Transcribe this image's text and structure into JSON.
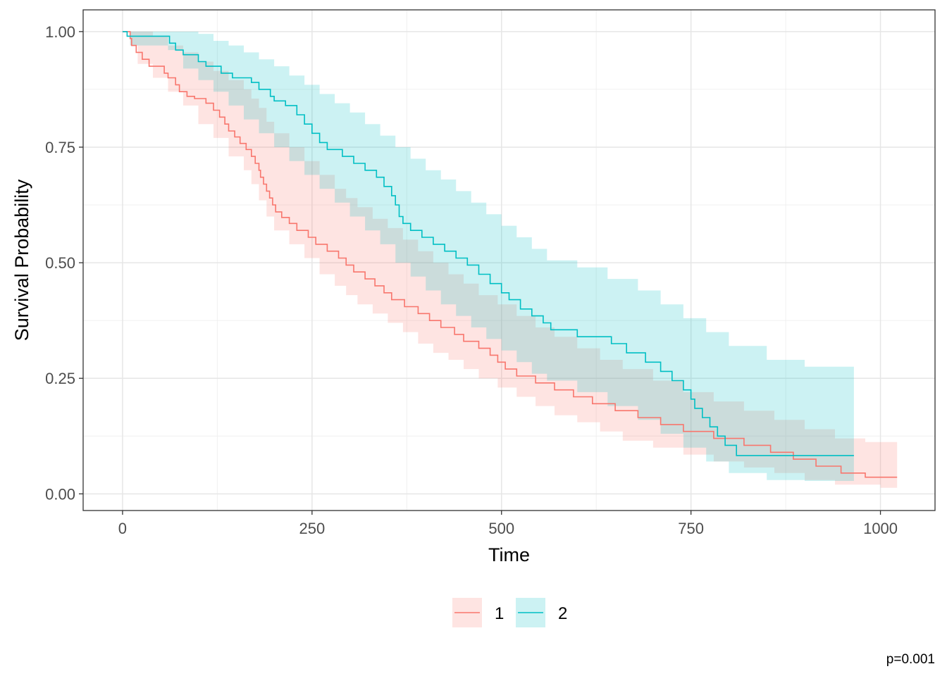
{
  "chart_data": {
    "type": "line",
    "title": "",
    "xlabel": "Time",
    "ylabel": "Survival Probability",
    "xlim": [
      -52,
      1072
    ],
    "ylim": [
      -0.036,
      1.047
    ],
    "x_ticks": [
      0,
      250,
      500,
      750,
      1000
    ],
    "x_tick_labels": [
      "0",
      "250",
      "500",
      "750",
      "1000"
    ],
    "y_ticks": [
      0,
      0.25,
      0.5,
      0.75,
      1
    ],
    "y_tick_labels": [
      "0.00",
      "0.25",
      "0.50",
      "0.75",
      "1.00"
    ],
    "grid": true,
    "legend_position": "bottom",
    "annotation": "p=0.001",
    "series": [
      {
        "name": "1",
        "color": "#F8766D",
        "fill": "#FFE0DF",
        "steps": [
          [
            0,
            1.0
          ],
          [
            5,
            1.0
          ],
          [
            10,
            0.985
          ],
          [
            12,
            0.97
          ],
          [
            18,
            0.955
          ],
          [
            26,
            0.94
          ],
          [
            35,
            0.925
          ],
          [
            55,
            0.91
          ],
          [
            60,
            0.9
          ],
          [
            70,
            0.885
          ],
          [
            75,
            0.87
          ],
          [
            85,
            0.86
          ],
          [
            95,
            0.855
          ],
          [
            110,
            0.845
          ],
          [
            120,
            0.83
          ],
          [
            128,
            0.815
          ],
          [
            135,
            0.8
          ],
          [
            140,
            0.785
          ],
          [
            148,
            0.772
          ],
          [
            155,
            0.758
          ],
          [
            163,
            0.745
          ],
          [
            170,
            0.73
          ],
          [
            175,
            0.715
          ],
          [
            180,
            0.7
          ],
          [
            182,
            0.685
          ],
          [
            186,
            0.67
          ],
          [
            190,
            0.655
          ],
          [
            194,
            0.64
          ],
          [
            198,
            0.625
          ],
          [
            202,
            0.61
          ],
          [
            210,
            0.598
          ],
          [
            220,
            0.585
          ],
          [
            230,
            0.57
          ],
          [
            245,
            0.555
          ],
          [
            255,
            0.54
          ],
          [
            270,
            0.525
          ],
          [
            285,
            0.51
          ],
          [
            295,
            0.495
          ],
          [
            305,
            0.48
          ],
          [
            320,
            0.465
          ],
          [
            333,
            0.45
          ],
          [
            345,
            0.435
          ],
          [
            355,
            0.42
          ],
          [
            372,
            0.405
          ],
          [
            390,
            0.39
          ],
          [
            405,
            0.375
          ],
          [
            420,
            0.36
          ],
          [
            438,
            0.345
          ],
          [
            450,
            0.33
          ],
          [
            470,
            0.315
          ],
          [
            485,
            0.3
          ],
          [
            495,
            0.285
          ],
          [
            505,
            0.27
          ],
          [
            520,
            0.255
          ],
          [
            545,
            0.24
          ],
          [
            570,
            0.225
          ],
          [
            595,
            0.21
          ],
          [
            620,
            0.195
          ],
          [
            650,
            0.18
          ],
          [
            680,
            0.165
          ],
          [
            710,
            0.15
          ],
          [
            740,
            0.135
          ],
          [
            780,
            0.12
          ],
          [
            820,
            0.105
          ],
          [
            855,
            0.09
          ],
          [
            885,
            0.075
          ],
          [
            915,
            0.06
          ],
          [
            948,
            0.045
          ],
          [
            980,
            0.036
          ],
          [
            1022,
            0.036
          ]
        ],
        "lower": [
          [
            0,
            1.0
          ],
          [
            10,
            0.97
          ],
          [
            20,
            0.93
          ],
          [
            40,
            0.9
          ],
          [
            60,
            0.87
          ],
          [
            80,
            0.84
          ],
          [
            100,
            0.8
          ],
          [
            120,
            0.77
          ],
          [
            140,
            0.73
          ],
          [
            160,
            0.7
          ],
          [
            170,
            0.67
          ],
          [
            180,
            0.635
          ],
          [
            190,
            0.6
          ],
          [
            200,
            0.57
          ],
          [
            220,
            0.54
          ],
          [
            240,
            0.51
          ],
          [
            260,
            0.475
          ],
          [
            280,
            0.45
          ],
          [
            295,
            0.43
          ],
          [
            310,
            0.41
          ],
          [
            330,
            0.39
          ],
          [
            350,
            0.37
          ],
          [
            370,
            0.35
          ],
          [
            390,
            0.325
          ],
          [
            410,
            0.305
          ],
          [
            430,
            0.29
          ],
          [
            450,
            0.27
          ],
          [
            470,
            0.25
          ],
          [
            495,
            0.23
          ],
          [
            520,
            0.21
          ],
          [
            545,
            0.19
          ],
          [
            570,
            0.17
          ],
          [
            600,
            0.155
          ],
          [
            630,
            0.135
          ],
          [
            660,
            0.115
          ],
          [
            700,
            0.1
          ],
          [
            740,
            0.085
          ],
          [
            780,
            0.07
          ],
          [
            820,
            0.057
          ],
          [
            860,
            0.045
          ],
          [
            900,
            0.03
          ],
          [
            940,
            0.02
          ],
          [
            1000,
            0.013
          ],
          [
            1022,
            0.013
          ]
        ],
        "upper": [
          [
            0,
            1.0
          ],
          [
            10,
            1.0
          ],
          [
            20,
            1.0
          ],
          [
            40,
            0.99
          ],
          [
            60,
            0.97
          ],
          [
            80,
            0.955
          ],
          [
            100,
            0.935
          ],
          [
            120,
            0.915
          ],
          [
            140,
            0.895
          ],
          [
            160,
            0.875
          ],
          [
            170,
            0.855
          ],
          [
            180,
            0.835
          ],
          [
            190,
            0.805
          ],
          [
            200,
            0.78
          ],
          [
            220,
            0.75
          ],
          [
            240,
            0.72
          ],
          [
            260,
            0.69
          ],
          [
            280,
            0.66
          ],
          [
            295,
            0.64
          ],
          [
            310,
            0.62
          ],
          [
            330,
            0.595
          ],
          [
            350,
            0.575
          ],
          [
            370,
            0.55
          ],
          [
            390,
            0.525
          ],
          [
            410,
            0.5
          ],
          [
            430,
            0.475
          ],
          [
            450,
            0.455
          ],
          [
            470,
            0.43
          ],
          [
            495,
            0.41
          ],
          [
            520,
            0.385
          ],
          [
            545,
            0.36
          ],
          [
            570,
            0.34
          ],
          [
            600,
            0.315
          ],
          [
            630,
            0.29
          ],
          [
            660,
            0.27
          ],
          [
            700,
            0.245
          ],
          [
            740,
            0.22
          ],
          [
            780,
            0.2
          ],
          [
            820,
            0.18
          ],
          [
            860,
            0.16
          ],
          [
            900,
            0.14
          ],
          [
            940,
            0.12
          ],
          [
            980,
            0.112
          ],
          [
            1022,
            0.112
          ]
        ]
      },
      {
        "name": "2",
        "color": "#00BFC4",
        "fill": "#CCF2F3",
        "steps": [
          [
            0,
            1.0
          ],
          [
            6,
            0.99
          ],
          [
            60,
            0.99
          ],
          [
            62,
            0.975
          ],
          [
            70,
            0.96
          ],
          [
            80,
            0.95
          ],
          [
            100,
            0.935
          ],
          [
            110,
            0.925
          ],
          [
            130,
            0.91
          ],
          [
            145,
            0.9
          ],
          [
            170,
            0.89
          ],
          [
            180,
            0.875
          ],
          [
            195,
            0.86
          ],
          [
            200,
            0.85
          ],
          [
            215,
            0.84
          ],
          [
            230,
            0.82
          ],
          [
            240,
            0.8
          ],
          [
            250,
            0.78
          ],
          [
            260,
            0.76
          ],
          [
            270,
            0.745
          ],
          [
            290,
            0.73
          ],
          [
            305,
            0.715
          ],
          [
            320,
            0.7
          ],
          [
            335,
            0.685
          ],
          [
            345,
            0.665
          ],
          [
            355,
            0.645
          ],
          [
            360,
            0.625
          ],
          [
            365,
            0.6
          ],
          [
            370,
            0.585
          ],
          [
            380,
            0.57
          ],
          [
            395,
            0.555
          ],
          [
            410,
            0.54
          ],
          [
            425,
            0.525
          ],
          [
            440,
            0.51
          ],
          [
            455,
            0.495
          ],
          [
            470,
            0.475
          ],
          [
            485,
            0.455
          ],
          [
            500,
            0.435
          ],
          [
            510,
            0.42
          ],
          [
            525,
            0.4
          ],
          [
            540,
            0.385
          ],
          [
            555,
            0.37
          ],
          [
            565,
            0.355
          ],
          [
            600,
            0.34
          ],
          [
            645,
            0.325
          ],
          [
            665,
            0.305
          ],
          [
            690,
            0.285
          ],
          [
            710,
            0.265
          ],
          [
            725,
            0.245
          ],
          [
            740,
            0.225
          ],
          [
            750,
            0.205
          ],
          [
            755,
            0.185
          ],
          [
            765,
            0.165
          ],
          [
            775,
            0.145
          ],
          [
            785,
            0.125
          ],
          [
            795,
            0.105
          ],
          [
            810,
            0.083
          ],
          [
            900,
            0.083
          ],
          [
            965,
            0.083
          ]
        ],
        "lower": [
          [
            0,
            1.0
          ],
          [
            10,
            0.97
          ],
          [
            60,
            0.96
          ],
          [
            80,
            0.92
          ],
          [
            100,
            0.895
          ],
          [
            120,
            0.87
          ],
          [
            140,
            0.84
          ],
          [
            160,
            0.81
          ],
          [
            180,
            0.78
          ],
          [
            200,
            0.75
          ],
          [
            220,
            0.72
          ],
          [
            240,
            0.69
          ],
          [
            260,
            0.66
          ],
          [
            280,
            0.63
          ],
          [
            300,
            0.6
          ],
          [
            320,
            0.57
          ],
          [
            340,
            0.54
          ],
          [
            360,
            0.5
          ],
          [
            380,
            0.47
          ],
          [
            400,
            0.44
          ],
          [
            420,
            0.41
          ],
          [
            440,
            0.385
          ],
          [
            460,
            0.36
          ],
          [
            480,
            0.335
          ],
          [
            500,
            0.31
          ],
          [
            520,
            0.285
          ],
          [
            540,
            0.26
          ],
          [
            560,
            0.245
          ],
          [
            600,
            0.22
          ],
          [
            640,
            0.19
          ],
          [
            680,
            0.16
          ],
          [
            710,
            0.13
          ],
          [
            740,
            0.1
          ],
          [
            770,
            0.07
          ],
          [
            800,
            0.045
          ],
          [
            850,
            0.03
          ],
          [
            900,
            0.028
          ],
          [
            965,
            0.028
          ]
        ],
        "upper": [
          [
            0,
            1.0
          ],
          [
            10,
            1.0
          ],
          [
            60,
            1.0
          ],
          [
            80,
            1.0
          ],
          [
            100,
            0.995
          ],
          [
            120,
            0.98
          ],
          [
            140,
            0.97
          ],
          [
            160,
            0.955
          ],
          [
            180,
            0.94
          ],
          [
            200,
            0.925
          ],
          [
            220,
            0.905
          ],
          [
            240,
            0.885
          ],
          [
            260,
            0.865
          ],
          [
            280,
            0.845
          ],
          [
            300,
            0.825
          ],
          [
            320,
            0.8
          ],
          [
            340,
            0.775
          ],
          [
            360,
            0.75
          ],
          [
            380,
            0.725
          ],
          [
            400,
            0.7
          ],
          [
            420,
            0.68
          ],
          [
            440,
            0.655
          ],
          [
            460,
            0.63
          ],
          [
            480,
            0.605
          ],
          [
            500,
            0.58
          ],
          [
            520,
            0.555
          ],
          [
            540,
            0.53
          ],
          [
            560,
            0.505
          ],
          [
            600,
            0.49
          ],
          [
            640,
            0.465
          ],
          [
            680,
            0.44
          ],
          [
            710,
            0.41
          ],
          [
            740,
            0.38
          ],
          [
            770,
            0.35
          ],
          [
            800,
            0.32
          ],
          [
            850,
            0.29
          ],
          [
            900,
            0.275
          ],
          [
            965,
            0.27
          ]
        ]
      }
    ]
  }
}
